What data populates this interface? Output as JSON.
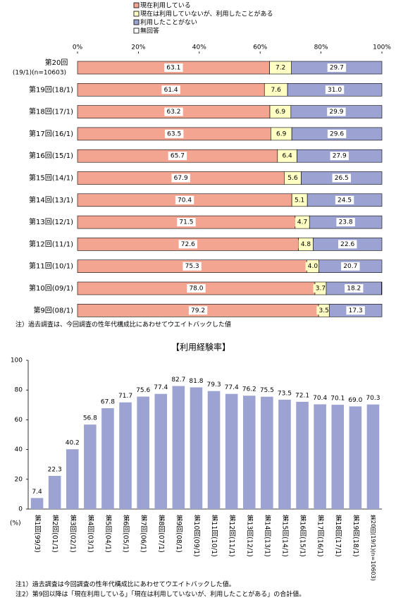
{
  "chart_data": [
    {
      "type": "stacked_bar",
      "orientation": "horizontal",
      "categories": [
        [
          "第20回",
          "(19/1)(n=10603)"
        ],
        "第19回(18/1)",
        "第18回(17/1)",
        "第17回(16/1)",
        "第16回(15/1)",
        "第15回(14/1)",
        "第14回(13/1)",
        "第13回(12/1)",
        "第12回(11/1)",
        "第11回(10/1)",
        "第10回(09/1)",
        "第9回(08/1)"
      ],
      "series": [
        {
          "name": "現在利用している",
          "color": "#f4a592",
          "values": [
            63.1,
            61.4,
            63.2,
            63.5,
            65.7,
            67.9,
            70.4,
            71.5,
            72.6,
            75.3,
            78.0,
            79.2
          ],
          "value_labels": [
            "63.1",
            "61.4",
            "63.2",
            "63.5",
            "65.7",
            "67.9",
            "70.4",
            "71.5",
            "72.6",
            "75.3",
            "78.0",
            "79.2"
          ]
        },
        {
          "name": "現在は利用していないが、利用したことがある",
          "color": "#ffffc4",
          "values": [
            7.2,
            7.6,
            6.9,
            6.9,
            6.4,
            5.6,
            5.1,
            4.7,
            4.8,
            4.0,
            3.7,
            3.5
          ],
          "value_labels": [
            "7.2",
            "7.6",
            "6.9",
            "6.9",
            "6.4",
            "5.6",
            "5.1",
            "4.7",
            "4.8",
            "4.0",
            "3.7",
            "3.5"
          ]
        },
        {
          "name": "利用したことがない",
          "color": "#9ca2d2",
          "values": [
            29.7,
            31.0,
            29.9,
            29.6,
            27.9,
            26.5,
            24.5,
            23.8,
            22.6,
            20.7,
            18.2,
            17.3
          ],
          "value_labels": [
            "29.7",
            "31.0",
            "29.9",
            "29.6",
            "27.9",
            "26.5",
            "24.5",
            "23.8",
            "22.6",
            "20.7",
            "18.2",
            "17.3"
          ]
        },
        {
          "name": "無回答",
          "color": "#ffffff",
          "values": [
            0,
            0,
            0,
            0,
            0,
            0,
            0,
            0,
            0,
            0,
            0.1,
            0
          ]
        }
      ],
      "xlim": [
        0,
        100
      ],
      "xticks": [
        {
          "value": 0,
          "label": "0%"
        },
        {
          "value": 20,
          "label": "20%"
        },
        {
          "value": 40,
          "label": "40%"
        },
        {
          "value": 60,
          "label": "60%"
        },
        {
          "value": 80,
          "label": "80%"
        },
        {
          "value": 100,
          "label": "100%"
        }
      ],
      "note": "注）過去調査は、今回調査の性年代構成比にあわせてウエイトバックした値"
    },
    {
      "type": "bar",
      "title": "【利用経験率】",
      "y_label": "(%)",
      "color": "#9ca2d2",
      "categories": [
        "第1回(99/3)",
        "第2回(01/1)",
        "第3回(02/1)",
        "第4回(03/1)",
        "第5回(04/1)",
        "第6回(05/1)",
        "第7回(06/1)",
        "第8回(07/1)",
        "第9回(08/1)",
        "第10回(09/1)",
        "第11回(10/1)",
        "第12回(11/1)",
        "第13回(12/1)",
        "第14回(13/1)",
        "第15回(14/1)",
        "第16回(15/1)",
        "第17回(16/1)",
        "第18回(17/1)",
        "第19回(18/1)",
        "第20回(19/1)(n=10603)"
      ],
      "values": [
        7.4,
        22.3,
        40.2,
        56.8,
        67.8,
        71.7,
        75.6,
        77.4,
        82.7,
        81.8,
        79.3,
        77.4,
        76.2,
        75.5,
        73.5,
        72.1,
        70.4,
        70.1,
        69.0,
        70.3
      ],
      "value_labels": [
        "7.4",
        "22.3",
        "40.2",
        "56.8",
        "67.8",
        "71.7",
        "75.6",
        "77.4",
        "82.7",
        "81.8",
        "79.3",
        "77.4",
        "76.2",
        "75.5",
        "73.5",
        "72.1",
        "70.4",
        "70.1",
        "69.0",
        "70.3"
      ],
      "ylim": [
        0,
        100
      ],
      "yticks": [
        0,
        20,
        40,
        60,
        80,
        100
      ],
      "notes": [
        "注1）過去調査は今回調査の性年代構成比にあわせてウエイトバックした値。",
        "注2）第9回以降は「現在利用している」「現在は利用していないが、利用したことがある」の合計値。"
      ]
    }
  ]
}
